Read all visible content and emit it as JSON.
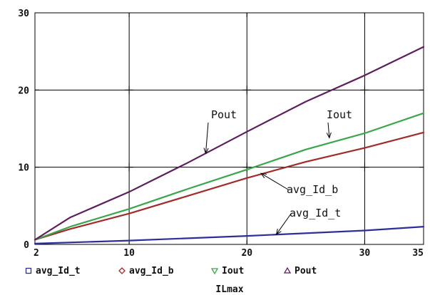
{
  "chart_data": {
    "type": "line",
    "title": "",
    "xlabel": "ILmax",
    "ylabel": "",
    "xlim": [
      2,
      35
    ],
    "ylim": [
      0,
      30
    ],
    "x_ticks": [
      2,
      10,
      20,
      30,
      35
    ],
    "y_ticks": [
      0,
      10,
      20,
      30
    ],
    "x_tick_labels": [
      "2",
      "10",
      "20",
      "30",
      "35"
    ],
    "y_tick_labels": [
      "0",
      "10",
      "20",
      "30"
    ],
    "grid": false,
    "legend_position": "bottom",
    "series": [
      {
        "name": "avg_Id_t",
        "color": "#2e2e9a",
        "marker": "square",
        "x": [
          2,
          10,
          20,
          30,
          35
        ],
        "y": [
          0.1,
          0.5,
          1.1,
          1.8,
          2.3
        ]
      },
      {
        "name": "avg_Id_b",
        "color": "#a32a2a",
        "marker": "diamond",
        "x": [
          2,
          5,
          10,
          15,
          20,
          25,
          30,
          35
        ],
        "y": [
          0.6,
          2.0,
          4.0,
          6.3,
          8.6,
          10.7,
          12.5,
          14.5
        ]
      },
      {
        "name": "Iout",
        "color": "#3aa64a",
        "marker": "triangle-down",
        "x": [
          2,
          5,
          10,
          15,
          20,
          25,
          30,
          35
        ],
        "y": [
          0.6,
          2.3,
          4.6,
          7.2,
          9.7,
          12.3,
          14.4,
          17.0
        ]
      },
      {
        "name": "Pout",
        "color": "#5c1f5c",
        "marker": "triangle-up",
        "x": [
          2,
          5,
          10,
          15,
          20,
          25,
          30,
          35
        ],
        "y": [
          0.6,
          3.5,
          6.8,
          10.6,
          14.6,
          18.5,
          21.9,
          25.6
        ]
      }
    ],
    "annotations": [
      {
        "text": "Pout",
        "target_series": "Pout",
        "x": 16.5,
        "y": 11.8
      },
      {
        "text": "Iout",
        "target_series": "Iout",
        "x": 27.0,
        "y": 13.8
      },
      {
        "text": "avg_Id_b",
        "target_series": "avg_Id_b",
        "x": 21.2,
        "y": 9.2
      },
      {
        "text": "avg_Id_t",
        "target_series": "avg_Id_t",
        "x": 22.5,
        "y": 1.3
      }
    ]
  }
}
